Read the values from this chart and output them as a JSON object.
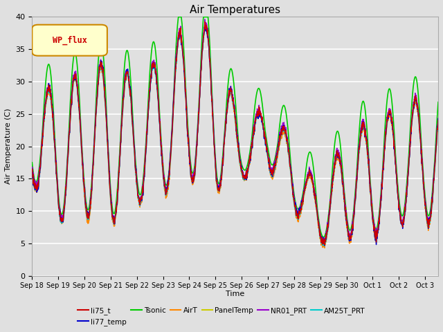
{
  "title": "Air Temperatures",
  "xlabel": "Time",
  "ylabel": "Air Temperature (C)",
  "ylim": [
    0,
    40
  ],
  "background_color": "#e0e0e0",
  "grid_color": "white",
  "series": {
    "li75_t": {
      "color": "#cc0000",
      "lw": 1.0
    },
    "li77_temp": {
      "color": "#0000cc",
      "lw": 1.0
    },
    "Tsonic": {
      "color": "#00cc00",
      "lw": 1.2
    },
    "AirT": {
      "color": "#ff8800",
      "lw": 1.0
    },
    "PanelTemp": {
      "color": "#cccc00",
      "lw": 1.0
    },
    "NR01_PRT": {
      "color": "#9900cc",
      "lw": 1.0
    },
    "AM25T_PRT": {
      "color": "#00cccc",
      "lw": 1.2
    }
  },
  "legend_label": "WP_flux",
  "legend_text_color": "#cc0000",
  "legend_box_color": "#ffffcc",
  "legend_border_color": "#cc8800",
  "x_tick_labels": [
    "Sep 18",
    "Sep 19",
    "Sep 20",
    "Sep 21",
    "Sep 22",
    "Sep 23",
    "Sep 24",
    "Sep 25",
    "Sep 26",
    "Sep 27",
    "Sep 28",
    "Sep 29",
    "Sep 30",
    "Oct 1",
    "Oct 2",
    "Oct 3"
  ],
  "n_points": 2000,
  "xlim_days": 15.5
}
